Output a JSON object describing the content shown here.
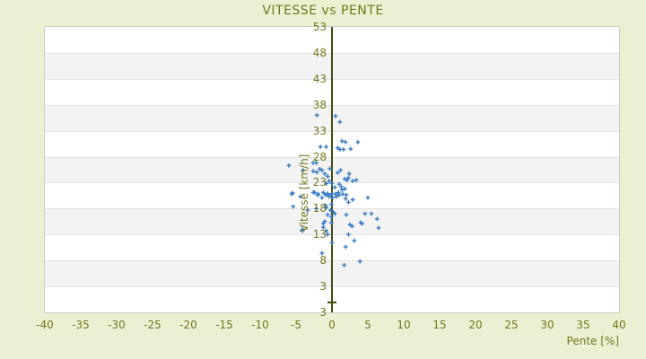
{
  "title": "VITESSE vs PENTE",
  "colors": {
    "background": "#EBF0D3",
    "text_olive": "#73771C",
    "axis_line": "#454B12",
    "marker": "#3B7CC4",
    "band_light": "#FFFFFF",
    "band_dark": "#F3F3F3",
    "band_border": "#E2E2E2",
    "plot_border": "#CBCBCB"
  },
  "chart_data": {
    "type": "scatter",
    "title": "VITESSE vs PENTE",
    "xlabel": "Pente [%]",
    "ylabel": "Vitesse [km/h]",
    "xlim": [
      -40,
      40
    ],
    "ylim": [
      -2,
      53
    ],
    "xticks": [
      -40,
      -35,
      -30,
      -25,
      -20,
      -15,
      -10,
      -5,
      0,
      5,
      10,
      15,
      20,
      25,
      30,
      35,
      40
    ],
    "yticks": [
      53,
      48,
      43,
      38,
      33,
      28,
      23,
      18,
      13,
      8,
      3
    ],
    "y_axis_min_label": "3",
    "band_step": 5,
    "grid": "alternating-horizontal-bands",
    "legend_position": "none",
    "marker": "plus",
    "points": [
      [
        -2.1,
        36.0
      ],
      [
        0.5,
        35.8
      ],
      [
        1.1,
        34.7
      ],
      [
        1.4,
        31.0
      ],
      [
        1.9,
        30.8
      ],
      [
        3.6,
        30.8
      ],
      [
        -1.6,
        29.9
      ],
      [
        -0.8,
        29.9
      ],
      [
        0.8,
        29.7
      ],
      [
        1.1,
        29.4
      ],
      [
        1.6,
        29.4
      ],
      [
        2.6,
        29.5
      ],
      [
        -6.0,
        26.3
      ],
      [
        -2.6,
        26.8
      ],
      [
        -2.2,
        26.8
      ],
      [
        -4.0,
        25.4
      ],
      [
        -2.6,
        25.2
      ],
      [
        -2.1,
        25.0
      ],
      [
        -1.7,
        25.6
      ],
      [
        -1.4,
        25.4
      ],
      [
        -0.3,
        25.7
      ],
      [
        1.2,
        25.4
      ],
      [
        0.8,
        24.9
      ],
      [
        2.4,
        24.7
      ],
      [
        -1.0,
        24.7
      ],
      [
        -0.6,
        24.2
      ],
      [
        -0.4,
        23.3
      ],
      [
        1.8,
        23.7
      ],
      [
        2.3,
        23.9
      ],
      [
        3.4,
        23.5
      ],
      [
        2.1,
        23.5
      ],
      [
        2.9,
        23.3
      ],
      [
        -0.8,
        22.8
      ],
      [
        0.0,
        22.8
      ],
      [
        1.0,
        22.7
      ],
      [
        1.3,
        22.2
      ],
      [
        0.4,
        22.1
      ],
      [
        1.4,
        21.6
      ],
      [
        1.8,
        21.8
      ],
      [
        -5.6,
        20.8
      ],
      [
        -5.5,
        21.0
      ],
      [
        -4.4,
        20.3
      ],
      [
        -2.6,
        21.1
      ],
      [
        -2.4,
        21.1
      ],
      [
        -2.0,
        20.6
      ],
      [
        -1.9,
        20.8
      ],
      [
        -1.4,
        20.1
      ],
      [
        -1.2,
        21.1
      ],
      [
        -1.0,
        20.8
      ],
      [
        -0.8,
        20.6
      ],
      [
        -0.6,
        20.9
      ],
      [
        -0.4,
        20.3
      ],
      [
        -0.3,
        20.6
      ],
      [
        0.0,
        20.9
      ],
      [
        0.1,
        20.1
      ],
      [
        0.5,
        20.8
      ],
      [
        0.6,
        20.3
      ],
      [
        0.9,
        21.1
      ],
      [
        1.0,
        20.6
      ],
      [
        1.5,
        20.8
      ],
      [
        1.9,
        19.9
      ],
      [
        2.0,
        20.6
      ],
      [
        2.9,
        19.7
      ],
      [
        5.0,
        20.1
      ],
      [
        2.3,
        19.2
      ],
      [
        -5.4,
        18.4
      ],
      [
        -2.2,
        18.0
      ],
      [
        -0.9,
        18.6
      ],
      [
        -0.8,
        18.2
      ],
      [
        -0.2,
        17.7
      ],
      [
        -0.1,
        18.8
      ],
      [
        0.2,
        17.3
      ],
      [
        -3.4,
        17.7
      ],
      [
        0.4,
        17.0
      ],
      [
        2.0,
        16.8
      ],
      [
        4.6,
        17.0
      ],
      [
        5.5,
        17.0
      ],
      [
        -0.6,
        16.8
      ],
      [
        -0.1,
        16.4
      ],
      [
        6.3,
        16.0
      ],
      [
        -1.0,
        15.5
      ],
      [
        -1.2,
        15.1
      ],
      [
        -0.1,
        15.3
      ],
      [
        2.5,
        14.9
      ],
      [
        4.0,
        15.3
      ],
      [
        4.2,
        15.1
      ],
      [
        2.8,
        14.6
      ],
      [
        6.5,
        14.3
      ],
      [
        -4.1,
        14.0
      ],
      [
        -1.2,
        14.4
      ],
      [
        -4.1,
        13.7
      ],
      [
        -0.8,
        13.7
      ],
      [
        -0.6,
        13.0
      ],
      [
        2.3,
        13.0
      ],
      [
        3.1,
        11.8
      ],
      [
        0.0,
        11.4
      ],
      [
        1.9,
        10.6
      ],
      [
        -1.4,
        9.4
      ],
      [
        3.9,
        7.8
      ],
      [
        1.7,
        7.1
      ]
    ]
  }
}
